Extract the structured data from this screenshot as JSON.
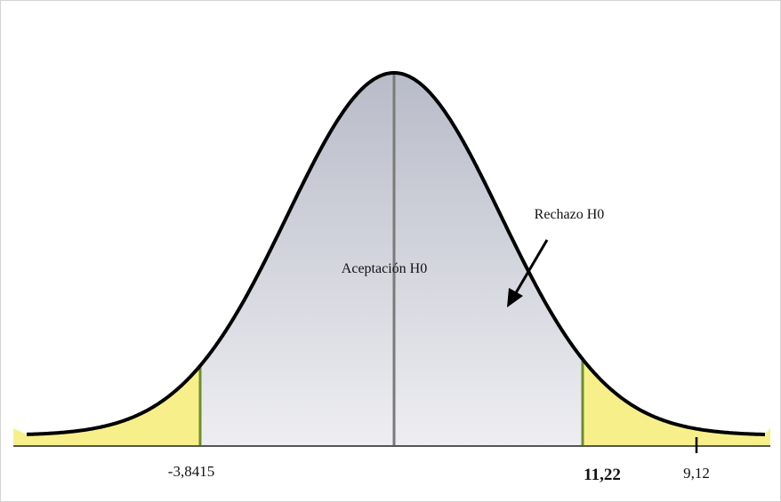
{
  "labels": {
    "acceptance": "Aceptación H0",
    "rejection": "Rechazo H0"
  },
  "ticks": {
    "left_critical": "-3,8415",
    "right_critical": "11,22",
    "statistic": "9,12"
  }
}
